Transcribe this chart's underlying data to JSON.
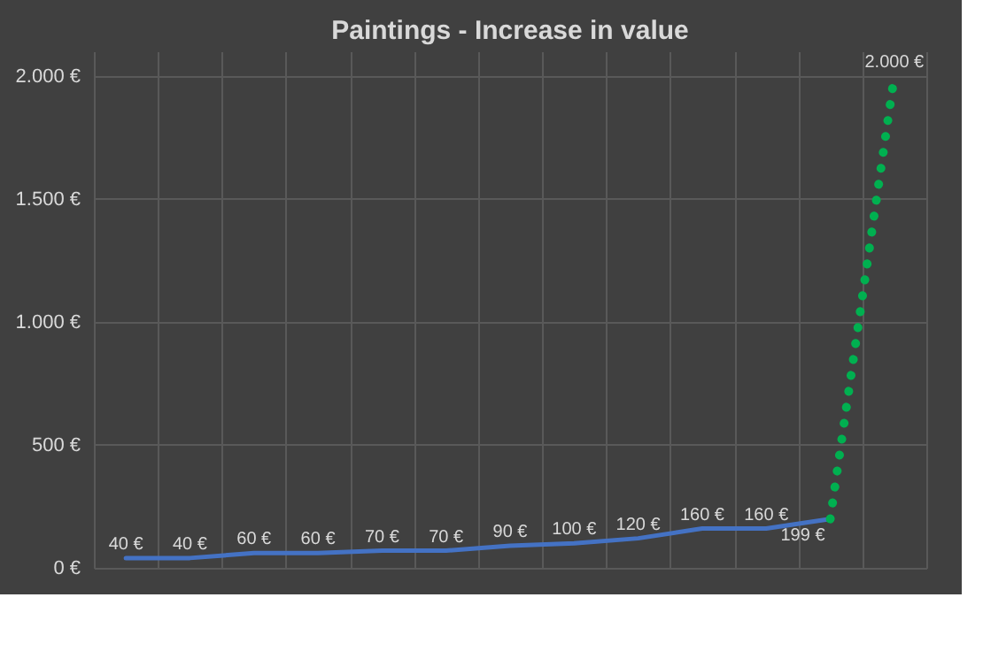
{
  "chart_data": {
    "type": "line",
    "title": "Paintings - Increase in value",
    "categories": [
      null,
      null,
      null,
      null,
      null,
      null,
      null,
      null,
      null,
      null,
      null,
      null,
      null
    ],
    "series": [
      {
        "color": "#4472c4",
        "line_style": "solid",
        "values": [
          40,
          40,
          60,
          60,
          70,
          70,
          90,
          100,
          120,
          160,
          160,
          199,
          null
        ],
        "value_labels": [
          "40 €",
          "40 €",
          "60 €",
          "60 €",
          "70 €",
          "70 €",
          "90 €",
          "100 €",
          "120 €",
          "160 €",
          "160 €",
          "199 €",
          null
        ]
      },
      {
        "color": "#00b050",
        "line_style": "dotted",
        "values": [
          null,
          null,
          null,
          null,
          null,
          null,
          null,
          null,
          null,
          null,
          null,
          199,
          2000
        ],
        "value_labels": [
          null,
          null,
          null,
          null,
          null,
          null,
          null,
          null,
          null,
          null,
          null,
          null,
          "2.000 €"
        ]
      }
    ],
    "ylim": [
      0,
      2100
    ],
    "yticks": [
      {
        "value": 0,
        "label": "0 €"
      },
      {
        "value": 500,
        "label": "500 €"
      },
      {
        "value": 1000,
        "label": "1.000 €"
      },
      {
        "value": 1500,
        "label": "1.500 €"
      },
      {
        "value": 2000,
        "label": "2.000 €"
      }
    ],
    "grid": true,
    "marker": "none",
    "tick_labels": "y"
  }
}
